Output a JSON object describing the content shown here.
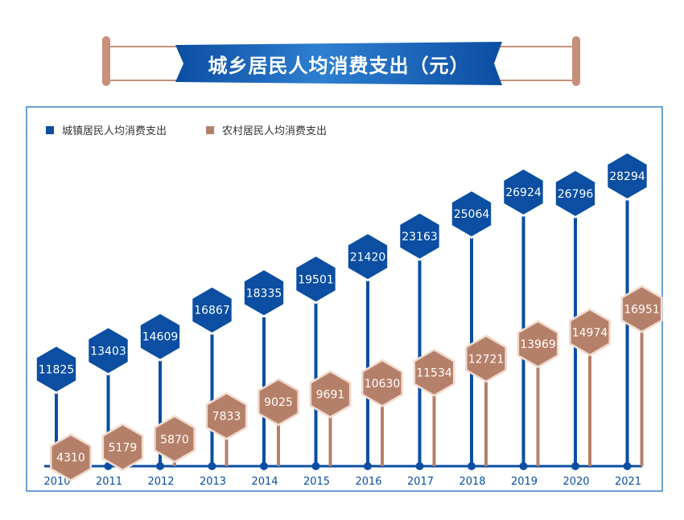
{
  "title": "城乡居民人均消费支出（元）",
  "colors": {
    "urban": "#0b4ea2",
    "rural": "#b5806a",
    "frame": "#3a82c4",
    "scroll_rod": "#c7907b",
    "banner_light": "#2f7fd1"
  },
  "chart_data": {
    "type": "bar",
    "title": "城乡居民人均消费支出（元）",
    "categories": [
      "2010",
      "2011",
      "2012",
      "2013",
      "2014",
      "2015",
      "2016",
      "2017",
      "2018",
      "2019",
      "2020",
      "2021"
    ],
    "series": [
      {
        "name": "城镇居民人均消费支出",
        "values": [
          11825,
          13403,
          14609,
          16867,
          18335,
          19501,
          21420,
          23163,
          25064,
          26924,
          26796,
          28294
        ]
      },
      {
        "name": "农村居民人均消费支出",
        "values": [
          4310,
          5179,
          5870,
          7833,
          9025,
          9691,
          10630,
          11534,
          12721,
          13969,
          14974,
          16951
        ]
      }
    ],
    "legend": "top-left",
    "grid": false
  }
}
